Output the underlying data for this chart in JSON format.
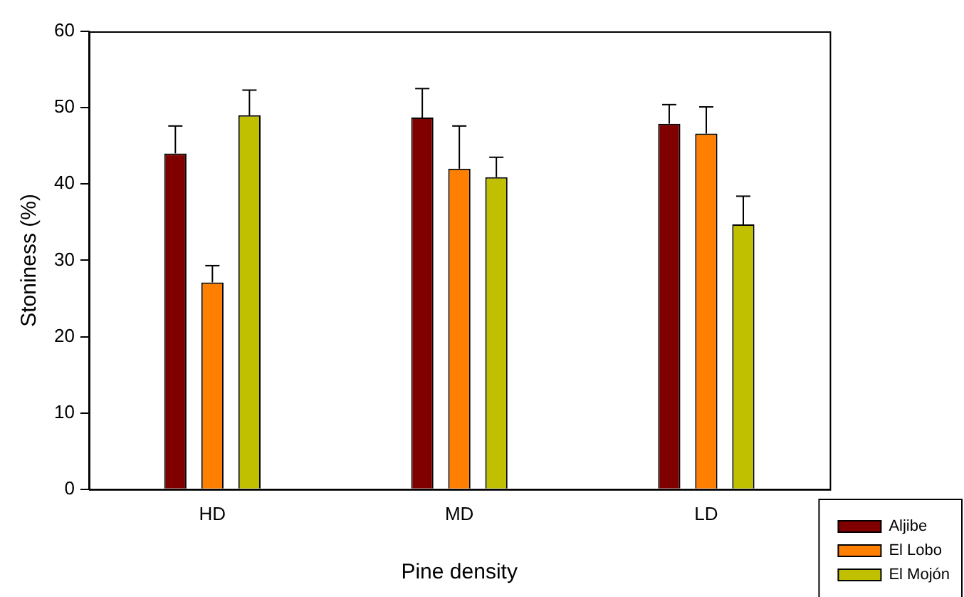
{
  "chart_data": {
    "type": "bar",
    "xlabel": "Pine density",
    "ylabel": "Stoniness (%)",
    "categories": [
      "HD",
      "MD",
      "LD"
    ],
    "series": [
      {
        "name": "Aljibe",
        "color": "#800000",
        "values": [
          44.0,
          48.7,
          47.9
        ],
        "errors": [
          [
            44.0,
            47.6
          ],
          [
            48.7,
            52.5
          ],
          [
            47.9,
            50.4
          ]
        ]
      },
      {
        "name": "El Lobo",
        "color": "#ff8000",
        "values": [
          27.1,
          42.0,
          46.6
        ],
        "errors": [
          [
            27.1,
            29.3
          ],
          [
            42.0,
            47.6
          ],
          [
            46.6,
            50.1
          ]
        ]
      },
      {
        "name": "El Mojón",
        "color": "#c0c000",
        "values": [
          49.0,
          40.9,
          34.7
        ],
        "errors": [
          [
            49.0,
            52.3
          ],
          [
            40.9,
            43.5
          ],
          [
            34.7,
            38.4
          ]
        ]
      }
    ],
    "ylim": [
      0,
      60
    ],
    "yticks": [
      0,
      10,
      20,
      30,
      40,
      50,
      60
    ],
    "grid": false,
    "legend": "bottom right"
  }
}
